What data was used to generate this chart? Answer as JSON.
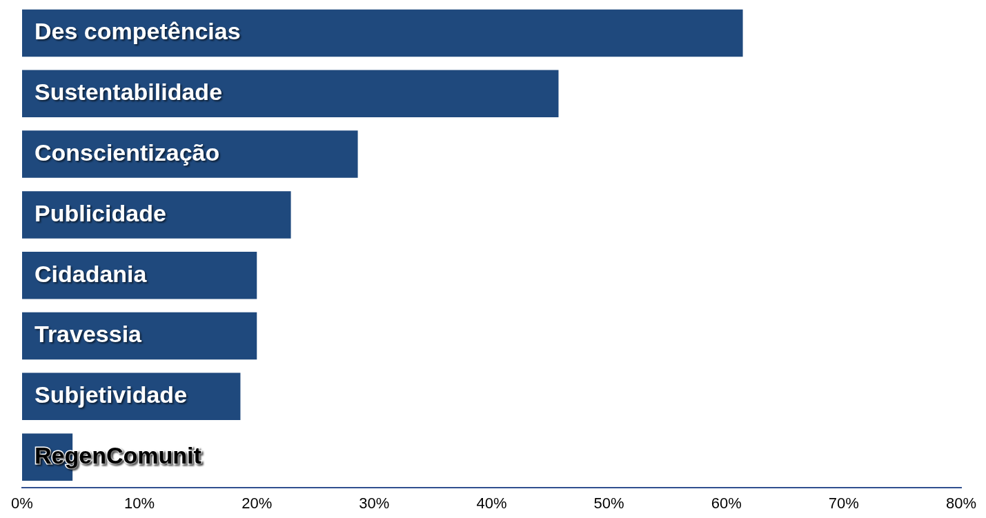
{
  "chart_data": {
    "type": "bar",
    "orientation": "horizontal",
    "categories": [
      "Des competências",
      "Sustentabilidade",
      "Conscientização",
      "Publicidade",
      "Cidadania",
      "Travessia",
      "Subjetividade",
      "RegenComunit"
    ],
    "values": [
      61.4,
      45.7,
      28.6,
      22.9,
      20.0,
      20.0,
      18.6,
      4.3
    ],
    "color": "#1f497d",
    "xlim": [
      0,
      80
    ],
    "xticks": [
      {
        "value": 0,
        "label": "0%"
      },
      {
        "value": 10,
        "label": "10%"
      },
      {
        "value": 20,
        "label": "20%"
      },
      {
        "value": 30,
        "label": "30%"
      },
      {
        "value": 40,
        "label": "40%"
      },
      {
        "value": 50,
        "label": "50%"
      },
      {
        "value": 60,
        "label": "60%"
      },
      {
        "value": 70,
        "label": "70%"
      },
      {
        "value": 80,
        "label": "80%"
      }
    ],
    "grid": false,
    "legend": false
  }
}
